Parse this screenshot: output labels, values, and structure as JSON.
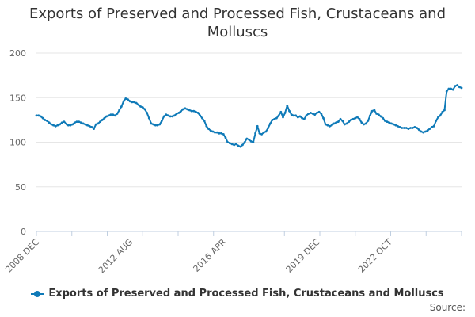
{
  "title_lines": [
    "Exports of Preserved and Processed Fish, Crustaceans and",
    "Molluscs"
  ],
  "source_label": "Source:",
  "colors": {
    "series": "#0f7ab8",
    "grid": "#e6e6e6",
    "axis": "#c0cfe0",
    "tick_text": "#666666"
  },
  "chart_data": {
    "type": "line",
    "title": "Exports of Preserved and Processed Fish, Crustaceans and Molluscs",
    "xlabel": "",
    "ylabel": "",
    "ylim": [
      0,
      200
    ],
    "yticks": [
      0,
      50,
      100,
      150,
      200
    ],
    "x_tick_labels": [
      "2008 DEC",
      "2012 AUG",
      "2016 APR",
      "2019 DEC",
      "2022 OCT"
    ],
    "x_tick_indices": [
      0,
      44,
      88,
      132,
      166
    ],
    "x_minor_tick_count": 12,
    "legend": "bottom",
    "series": [
      {
        "name": "Exports of Preserved and Processed Fish, Crustaceans and Molluscs",
        "values": [
          130,
          130,
          129,
          127,
          125,
          124,
          122,
          120,
          119,
          118,
          119,
          120,
          122,
          123,
          121,
          119,
          119,
          120,
          122,
          123,
          123,
          122,
          121,
          120,
          119,
          118,
          117,
          115,
          120,
          121,
          123,
          125,
          127,
          129,
          130,
          131,
          131,
          130,
          132,
          136,
          140,
          146,
          149,
          148,
          146,
          145,
          145,
          144,
          142,
          140,
          139,
          137,
          133,
          127,
          121,
          120,
          119,
          119,
          120,
          124,
          129,
          131,
          130,
          129,
          129,
          130,
          132,
          133,
          135,
          137,
          138,
          137,
          136,
          135,
          135,
          134,
          133,
          130,
          127,
          124,
          118,
          115,
          113,
          112,
          111,
          111,
          110,
          110,
          109,
          105,
          100,
          99,
          98,
          97,
          98,
          96,
          95,
          97,
          100,
          104,
          103,
          101,
          100,
          110,
          118,
          110,
          109,
          111,
          112,
          116,
          121,
          125,
          126,
          127,
          130,
          134,
          128,
          133,
          141,
          135,
          131,
          130,
          130,
          128,
          129,
          127,
          126,
          130,
          132,
          133,
          132,
          131,
          133,
          134,
          132,
          127,
          120,
          119,
          118,
          119,
          121,
          122,
          123,
          126,
          124,
          120,
          121,
          123,
          125,
          126,
          127,
          128,
          126,
          122,
          120,
          121,
          124,
          130,
          135,
          136,
          132,
          131,
          129,
          127,
          124,
          123,
          122,
          121,
          120,
          119,
          118,
          117,
          116,
          116,
          116,
          115,
          116,
          116,
          117,
          116,
          114,
          112,
          111,
          112,
          113,
          115,
          117,
          118,
          124,
          128,
          130,
          134,
          136,
          157,
          160,
          160,
          159,
          163,
          164,
          162,
          161
        ]
      }
    ]
  }
}
